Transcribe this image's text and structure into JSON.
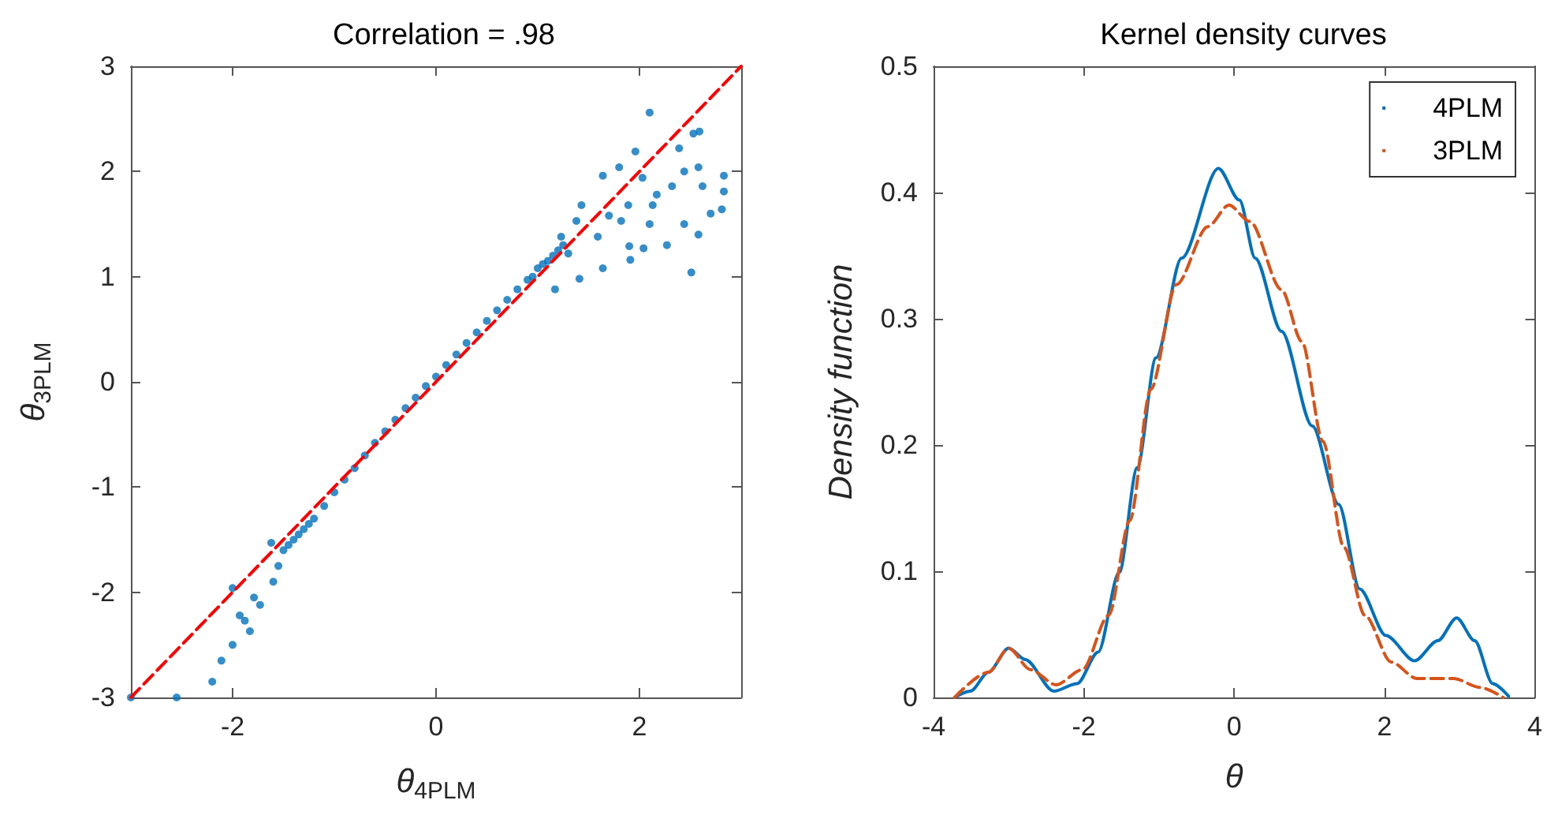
{
  "chart_data": [
    {
      "type": "scatter",
      "title": "Correlation = .98",
      "xlabel": "θ$_{4PLM}$",
      "ylabel": "θ$_{3PLM}$",
      "xlim": [
        -3,
        3
      ],
      "ylim": [
        -3,
        3
      ],
      "xticks": [
        -2,
        0,
        2
      ],
      "yticks": [
        -3,
        -2,
        -1,
        0,
        1,
        2,
        3
      ],
      "grid": false,
      "marker": "circle",
      "series": [
        {
          "color": "#0072bd",
          "x": [
            -3,
            -2.55,
            -2.2,
            -2.11,
            -2.0,
            -1.83,
            -1.93,
            -1.88,
            -1.79,
            -2.0,
            -1.73,
            -1.6,
            -1.62,
            -1.5,
            -1.55,
            -1.45,
            -1.4,
            -1.35,
            -1.3,
            -1.25,
            -1.2,
            -1.1,
            -1.0,
            -0.9,
            -0.8,
            -0.7,
            -0.6,
            -0.5,
            -0.4,
            -0.3,
            -0.2,
            -0.1,
            0,
            0.1,
            0.2,
            0.3,
            0.4,
            0.5,
            0.6,
            0.7,
            0.8,
            0.9,
            0.95,
            1.0,
            1.05,
            1.1,
            1.15,
            1.2,
            1.25,
            1.3,
            2.1,
            2.59,
            2.53,
            2.39,
            1.96,
            1.8,
            2.03,
            2.44,
            2.58,
            2.83,
            2.83,
            2.81,
            2.7,
            2.62,
            2.44,
            2.58,
            2.51,
            2.27,
            2.1,
            2.04,
            1.91,
            1.9,
            1.64,
            2.13,
            2.17,
            2.32,
            1.89,
            1.7,
            1.43,
            1.41,
            1.17,
            1.23,
            1.59,
            1.82,
            1.64,
            1.38
          ],
          "values": [
            -3,
            -3,
            -2.85,
            -2.65,
            -2.5,
            -2.37,
            -2.22,
            -2.27,
            -2.05,
            -1.96,
            -2.12,
            -1.9,
            -1.53,
            -1.6,
            -1.75,
            -1.55,
            -1.5,
            -1.45,
            -1.4,
            -1.35,
            -1.3,
            -1.18,
            -1.05,
            -0.93,
            -0.82,
            -0.7,
            -0.58,
            -0.47,
            -0.36,
            -0.25,
            -0.15,
            -0.04,
            0.05,
            0.16,
            0.26,
            0.37,
            0.47,
            0.58,
            0.68,
            0.78,
            0.88,
            0.97,
            1.0,
            1.08,
            1.12,
            1.15,
            1.2,
            1.25,
            1.3,
            1.22,
            2.56,
            2.38,
            2.36,
            2.22,
            2.19,
            2.04,
            1.94,
            2.0,
            2.04,
            1.96,
            1.81,
            1.64,
            1.6,
            1.86,
            1.5,
            1.4,
            1.04,
            1.3,
            1.5,
            1.27,
            1.16,
            1.29,
            1.08,
            1.68,
            1.78,
            1.86,
            1.68,
            1.58,
            1.68,
            0.98,
            0.88,
            1.38,
            1.38,
            1.53,
            1.96,
            1.53
          ]
        },
        {
          "type": "line",
          "color": "#ff0000",
          "line_style": "dashed",
          "marker": "none",
          "x": [
            -3,
            3
          ],
          "values": [
            -3,
            3
          ]
        }
      ]
    },
    {
      "type": "line",
      "title": "Kernel density curves",
      "xlabel": "θ",
      "ylabel": "Density function",
      "xlim": [
        -4,
        4
      ],
      "ylim": [
        0,
        0.5
      ],
      "xticks": [
        -4,
        -2,
        0,
        2,
        4
      ],
      "yticks": [
        0,
        0.1,
        0.2,
        0.3,
        0.4,
        0.5
      ],
      "grid": false,
      "marker": "none",
      "legend": "top right",
      "series": [
        {
          "name": "4PLM",
          "color": "#0072bd",
          "line_style": "solid",
          "x": [
            -3.72,
            -3.51,
            -3.27,
            -3.0,
            -2.78,
            -2.4,
            -2.09,
            -1.81,
            -1.53,
            -1.29,
            -1.04,
            -0.7,
            -0.21,
            0.07,
            0.28,
            0.63,
            1.04,
            1.39,
            1.67,
            2.02,
            2.4,
            2.71,
            2.96,
            3.2,
            3.44,
            3.65
          ],
          "values": [
            0,
            0.005,
            0.02,
            0.039,
            0.03,
            0.005,
            0.011,
            0.036,
            0.099,
            0.182,
            0.269,
            0.348,
            0.419,
            0.394,
            0.348,
            0.29,
            0.215,
            0.153,
            0.086,
            0.049,
            0.029,
            0.045,
            0.063,
            0.045,
            0.011,
            0.001
          ]
        },
        {
          "name": "3PLM",
          "color": "#d95319",
          "line_style": "dashed",
          "x": [
            -3.72,
            -3.27,
            -3.0,
            -2.71,
            -2.37,
            -2.02,
            -1.67,
            -1.39,
            -1.11,
            -0.77,
            -0.35,
            -0.07,
            0.21,
            0.63,
            0.9,
            1.18,
            1.46,
            1.74,
            2.09,
            2.43,
            2.92,
            3.27,
            3.58
          ],
          "values": [
            0,
            0.02,
            0.039,
            0.022,
            0.01,
            0.022,
            0.065,
            0.14,
            0.244,
            0.327,
            0.373,
            0.39,
            0.377,
            0.323,
            0.282,
            0.203,
            0.119,
            0.065,
            0.028,
            0.015,
            0.015,
            0.008,
            0
          ]
        }
      ]
    }
  ]
}
